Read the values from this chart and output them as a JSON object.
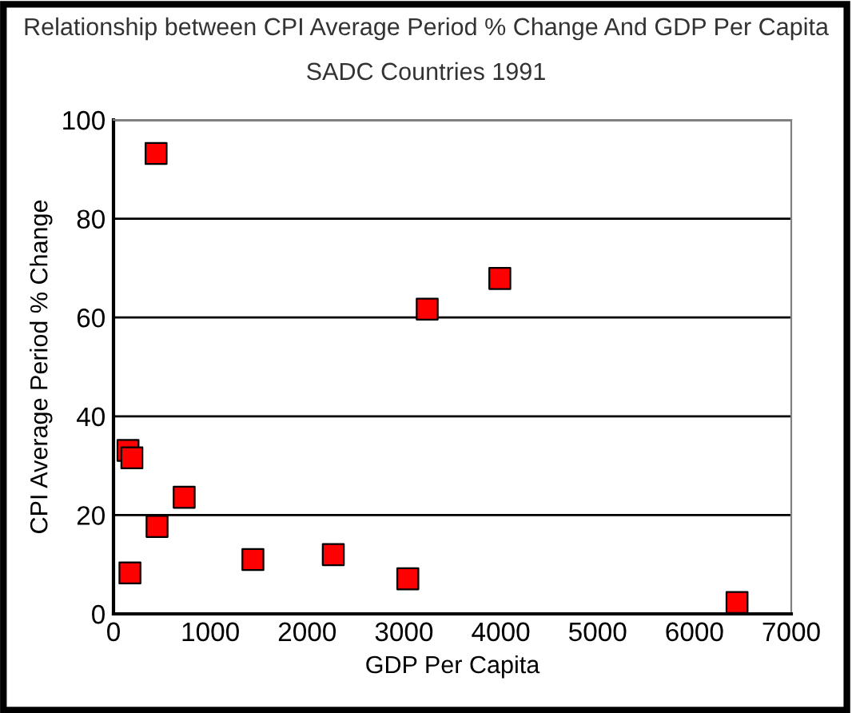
{
  "chart_data": {
    "type": "scatter",
    "title": "Relationship between CPI Average Period % Change And GDP Per Capita",
    "subtitle": "SADC Countries 1991",
    "xlabel": "GDP Per Capita",
    "ylabel": "CPI Average Period % Change",
    "x": [
      150,
      190,
      170,
      440,
      450,
      730,
      1440,
      2270,
      3040,
      3240,
      3990,
      6440
    ],
    "values": [
      33.1,
      31.6,
      8.3,
      93.2,
      17.7,
      23.6,
      11,
      12,
      7.1,
      61.7,
      67.9,
      2.3
    ],
    "color": "#ff0000",
    "marker": "square",
    "xlim": [
      0,
      7000
    ],
    "xticks": [
      0,
      1000,
      2000,
      3000,
      4000,
      5000,
      6000,
      7000
    ],
    "ylim": [
      0,
      100
    ],
    "yticks": [
      0,
      20,
      40,
      60,
      80,
      100
    ],
    "grid": "y",
    "legend": false
  }
}
